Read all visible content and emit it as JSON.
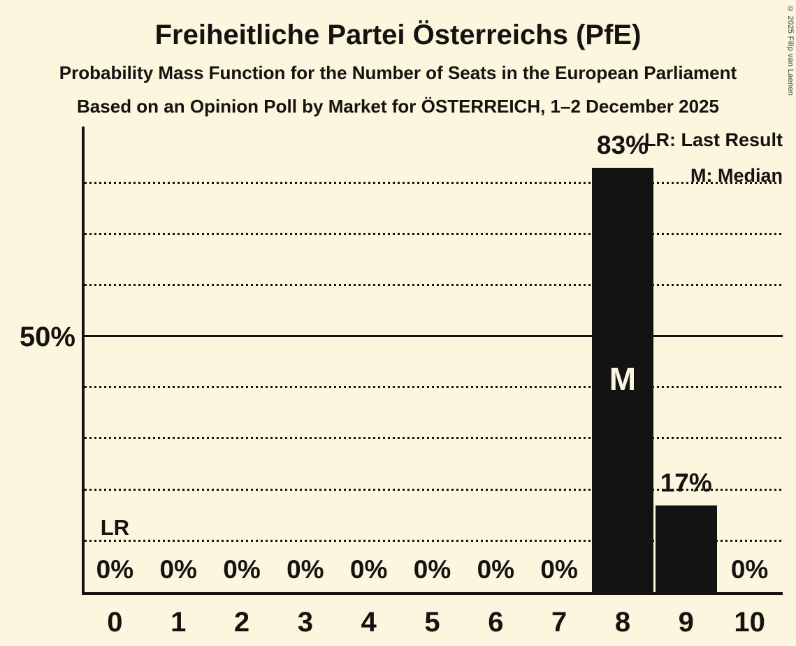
{
  "header": {
    "title": "Freiheitliche Partei Österreichs (PfE)",
    "subtitle1": "Probability Mass Function for the Number of Seats in the European Parliament",
    "subtitle2": "Based on an Opinion Poll by Market for ÖSTERREICH, 1–2 December 2025",
    "copyright": "© 2025 Filip van Laenen"
  },
  "legend": {
    "last_result": "LR: Last Result",
    "median": "M: Median"
  },
  "chart_data": {
    "type": "bar",
    "title": "Probability Mass Function for the Number of Seats in the European Parliament",
    "categories": [
      "0",
      "1",
      "2",
      "3",
      "4",
      "5",
      "6",
      "7",
      "8",
      "9",
      "10"
    ],
    "values": [
      0,
      0,
      0,
      0,
      0,
      0,
      0,
      0,
      83,
      17,
      0
    ],
    "value_labels": [
      "0%",
      "0%",
      "0%",
      "0%",
      "0%",
      "0%",
      "0%",
      "0%",
      "83%",
      "17%",
      "0%"
    ],
    "median_category": "8",
    "median_marker": "M",
    "last_result_category": "0",
    "last_result_marker": "LR",
    "y_axis_label": "50%",
    "solid_gridline_pct": 50,
    "dotted_gridlines_pct": [
      10,
      20,
      30,
      40,
      60,
      70,
      80
    ],
    "lr_label_above_pct": 10,
    "ylim": [
      0,
      91
    ],
    "grid": "horizontal-dotted",
    "legend_position": "top-right",
    "colors": {
      "background": "#FBF6DD",
      "ink": "#14130F",
      "bar": "#131313",
      "median_text": "#FBF6DD",
      "copyright_text": "#3A3A3A"
    }
  }
}
